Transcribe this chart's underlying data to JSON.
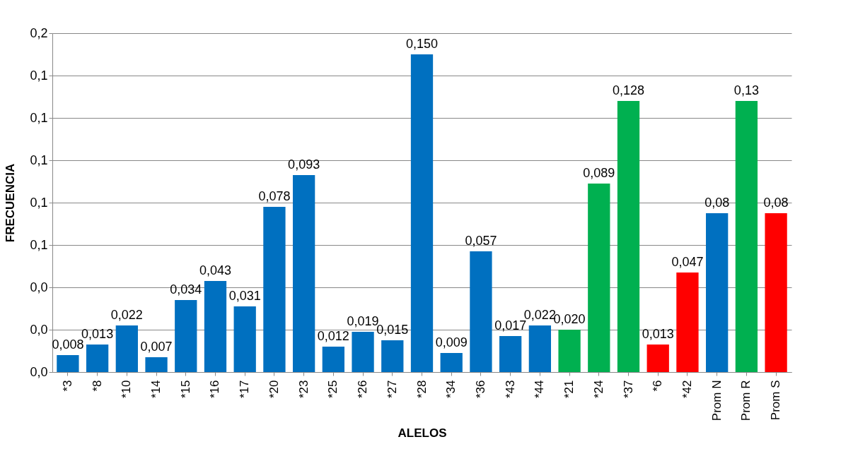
{
  "chart_data": {
    "type": "bar",
    "xlabel": "ALELOS",
    "ylabel": "FRECUENCIA",
    "categories": [
      "*3",
      "*8",
      "*10",
      "*14",
      "*15",
      "*16",
      "*17",
      "*20",
      "*23",
      "*25",
      "*26",
      "*27",
      "*28",
      "*34",
      "*36",
      "*43",
      "*44",
      "*21",
      "*24",
      "*37",
      "*6",
      "*42",
      "Prom N",
      "Prom R",
      "Prom S"
    ],
    "values": [
      0.008,
      0.013,
      0.022,
      0.007,
      0.034,
      0.043,
      0.031,
      0.078,
      0.093,
      0.012,
      0.019,
      0.015,
      0.15,
      0.009,
      0.057,
      0.017,
      0.022,
      0.02,
      0.089,
      0.128,
      0.013,
      0.047,
      0.075,
      0.128,
      0.075
    ],
    "value_labels": [
      "0,008",
      "0,013",
      "0,022",
      "0,007",
      "0,034",
      "0,043",
      "0,031",
      "0,078",
      "0,093",
      "0,012",
      "0,019",
      "0,015",
      "0,150",
      "0,009",
      "0,057",
      "0,017",
      "0,022",
      "0,020",
      "0,089",
      "0,128",
      "0,013",
      "0,047",
      "0,08",
      "0,13",
      "0,08"
    ],
    "colors": [
      "#0070c0",
      "#0070c0",
      "#0070c0",
      "#0070c0",
      "#0070c0",
      "#0070c0",
      "#0070c0",
      "#0070c0",
      "#0070c0",
      "#0070c0",
      "#0070c0",
      "#0070c0",
      "#0070c0",
      "#0070c0",
      "#0070c0",
      "#0070c0",
      "#0070c0",
      "#00b050",
      "#00b050",
      "#00b050",
      "#ff0000",
      "#ff0000",
      "#0070c0",
      "#00b050",
      "#ff0000"
    ],
    "ylim": [
      0,
      0.16
    ],
    "yticks": [
      {
        "value": 0,
        "label": "0,0"
      },
      {
        "value": 0.02,
        "label": "0,0"
      },
      {
        "value": 0.04,
        "label": "0,0"
      },
      {
        "value": 0.06,
        "label": "0,1"
      },
      {
        "value": 0.08,
        "label": "0,1"
      },
      {
        "value": 0.1,
        "label": "0,1"
      },
      {
        "value": 0.12,
        "label": "0,1"
      },
      {
        "value": 0.14,
        "label": "0,1"
      },
      {
        "value": 0.16,
        "label": "0,2"
      }
    ],
    "grid": "y"
  }
}
